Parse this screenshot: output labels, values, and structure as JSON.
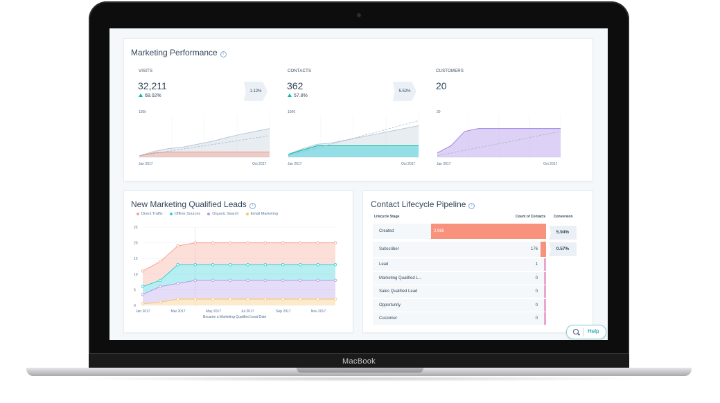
{
  "device": {
    "brand": "MacBook"
  },
  "performance": {
    "title": "Marketing Performance",
    "metrics": [
      {
        "label": "VISITS",
        "value": "32,211",
        "change": "68.02%",
        "ymax": "150k",
        "xstart": "Jan 2017",
        "xend": "Oct 2017"
      },
      {
        "label": "CONTACTS",
        "value": "362",
        "change": "57.8%",
        "ymax": "1500",
        "xstart": "Jan 2017",
        "xend": "Oct 2017"
      },
      {
        "label": "CUSTOMERS",
        "value": "20",
        "ymax": "30",
        "xstart": "Jan 2017",
        "xend": "Oct 2017"
      }
    ],
    "conversions": [
      "1.12%",
      "5.52%"
    ]
  },
  "mql": {
    "title": "New Marketing Qualified Leads",
    "legend": [
      "Direct Traffic",
      "Offline Sources",
      "Organic Search",
      "Email Marketing"
    ],
    "xlabel": "Became a Marketing Qualified Lead Date"
  },
  "pipeline": {
    "title": "Contact Lifecycle Pipeline",
    "col_stage": "Lifecycle Stage",
    "col_count": "Count of Contacts",
    "col_conversion": "Conversion",
    "rows": [
      {
        "stage": "Created",
        "count": "2,965"
      },
      {
        "stage": "Subscriber",
        "count": "176"
      },
      {
        "stage": "Lead",
        "count": "1"
      },
      {
        "stage": "Marketing Qualified L...",
        "count": "0"
      },
      {
        "stage": "Sales Qualified Lead",
        "count": "0"
      },
      {
        "stage": "Opportunity",
        "count": "0"
      },
      {
        "stage": "Customer",
        "count": "0"
      }
    ],
    "conversions": [
      "5.94%",
      "0.57%"
    ]
  },
  "help": {
    "label": "Help"
  },
  "chart_data": [
    {
      "type": "area",
      "x": [
        "Jan 2017",
        "Feb 2017",
        "Mar 2017",
        "Apr 2017",
        "May 2017",
        "Jun 2017",
        "Jul 2017",
        "Aug 2017",
        "Sep 2017",
        "Oct 2017"
      ],
      "series": [
        {
          "values": [
            5000,
            20000,
            30000,
            35000,
            45000,
            55000,
            68000,
            80000,
            90000,
            100000
          ]
        },
        {
          "values": [
            5000,
            15000,
            18000,
            18000,
            18000,
            18000,
            18000,
            18000,
            18000,
            18000
          ]
        }
      ],
      "ylim": [
        0,
        150000
      ]
    },
    {
      "type": "area",
      "x": [
        "Jan 2017",
        "Feb 2017",
        "Mar 2017",
        "Apr 2017",
        "May 2017",
        "Jun 2017",
        "Jul 2017",
        "Aug 2017",
        "Sep 2017",
        "Oct 2017"
      ],
      "series": [
        {
          "values": [
            100,
            300,
            450,
            500,
            600,
            700,
            800,
            900,
            1000,
            1100
          ]
        },
        {
          "values": [
            100,
            250,
            400,
            400,
            400,
            400,
            400,
            400,
            400,
            400
          ]
        }
      ],
      "ylim": [
        0,
        1500
      ]
    },
    {
      "type": "area",
      "x": [
        "Jan 2017",
        "Feb 2017",
        "Mar 2017",
        "Apr 2017",
        "May 2017",
        "Jun 2017",
        "Jul 2017",
        "Aug 2017",
        "Sep 2017",
        "Oct 2017"
      ],
      "series": [
        {
          "values": [
            3,
            8,
            18,
            20,
            20,
            20,
            20,
            20,
            20,
            20
          ]
        }
      ],
      "ylim": [
        0,
        30
      ]
    },
    {
      "type": "area",
      "title": "New Marketing Qualified Leads",
      "xlabel": "Became a Marketing Qualified Lead Date",
      "x": [
        "Jan 2017",
        "Feb 2017",
        "Mar 2017",
        "Apr 2017",
        "May 2017",
        "Jun 2017",
        "Jul 2017",
        "Aug 2017",
        "Sep 2017",
        "Oct 2017",
        "Nov 2017",
        "Dec 2017"
      ],
      "xticks": [
        "Jan 2017",
        "Mar 2017",
        "May 2017",
        "Jul 2017",
        "Sep 2017",
        "Nov 2017"
      ],
      "yticks": [
        0,
        5,
        10,
        15,
        20,
        25
      ],
      "ylim": [
        0,
        25
      ],
      "stacked": true,
      "series": [
        {
          "name": "Email Marketing",
          "values": [
            0.5,
            1,
            2,
            2,
            2,
            2,
            2,
            2,
            2,
            2,
            2,
            2
          ]
        },
        {
          "name": "Organic Search",
          "values": [
            3,
            5,
            5,
            6,
            6,
            6,
            6,
            6,
            6,
            6,
            6,
            6
          ]
        },
        {
          "name": "Offline Sources",
          "values": [
            2.5,
            2,
            6,
            5,
            5,
            5,
            5,
            5,
            5,
            5,
            5,
            5
          ]
        },
        {
          "name": "Direct Traffic",
          "values": [
            5,
            6,
            6,
            7,
            7,
            7,
            7,
            7,
            7,
            7,
            7,
            7
          ]
        }
      ],
      "legend_position": "top-left"
    },
    {
      "type": "bar",
      "categories": [
        "Created",
        "Subscriber",
        "Lead",
        "Marketing Qualified L...",
        "Sales Qualified Lead",
        "Opportunity",
        "Customer"
      ],
      "values": [
        2965,
        176,
        1,
        0,
        0,
        0,
        0
      ]
    }
  ],
  "colors": {
    "salmon": "#f5a392",
    "teal": "#2ecfd6",
    "purple": "#b49ae8",
    "orange": "#f6c36b",
    "gray": "#cbd6e2",
    "created_bar": "#f8927d",
    "pink_bar": "#e9a7cf"
  }
}
